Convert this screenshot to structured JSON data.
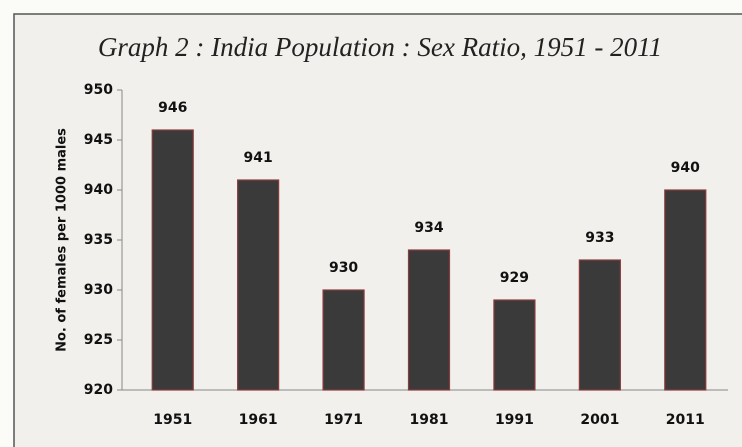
{
  "chart_data": {
    "type": "bar",
    "title": "Graph 2 : India Population : Sex Ratio, 1951 - 2011",
    "y_label": "No. of females per 1000 males",
    "categories": [
      "1951",
      "1961",
      "1971",
      "1981",
      "1991",
      "2001",
      "2011"
    ],
    "values": [
      946,
      941,
      930,
      934,
      929,
      933,
      940
    ],
    "color": "#3b3a3a",
    "ylim": [
      920,
      950
    ],
    "yticks": [
      920,
      925,
      930,
      935,
      940,
      945,
      950
    ],
    "grid": false
  }
}
